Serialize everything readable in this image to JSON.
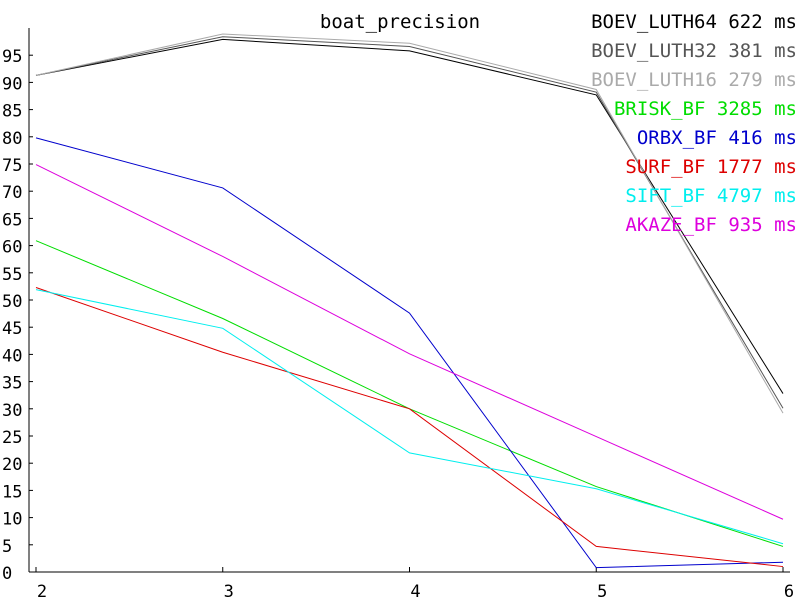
{
  "chart_data": {
    "type": "line",
    "title": "boat_precision",
    "xlabel": "",
    "ylabel": "",
    "x": [
      2,
      3,
      4,
      5,
      6
    ],
    "xlim": [
      2,
      6
    ],
    "ylim": [
      0,
      100
    ],
    "y_ticks": [
      0,
      5,
      10,
      15,
      20,
      25,
      30,
      35,
      40,
      45,
      50,
      55,
      60,
      65,
      70,
      75,
      80,
      85,
      90,
      95
    ],
    "x_ticks": [
      2,
      3,
      4,
      5,
      6
    ],
    "grid": false,
    "legend_position": "top-right",
    "series": [
      {
        "name": "BOEV_LUTH64",
        "time": "622",
        "unit": "ms",
        "color": "#000000",
        "values": [
          91.3,
          97.9,
          95.8,
          87.7,
          32.8
        ]
      },
      {
        "name": "BOEV_LUTH32",
        "time": "381",
        "unit": "ms",
        "color": "#555555",
        "values": [
          91.3,
          98.4,
          96.6,
          88.2,
          30.1
        ]
      },
      {
        "name": "BOEV_LUTH16",
        "time": "279",
        "unit": "ms",
        "color": "#aaaaaa",
        "values": [
          91.3,
          98.9,
          97.2,
          88.7,
          29.2
        ]
      },
      {
        "name": "BRISK_BF",
        "time": "3285",
        "unit": "ms",
        "color": "#00dd00",
        "values": [
          60.9,
          46.6,
          30.0,
          15.7,
          4.7
        ]
      },
      {
        "name": "ORBX_BF",
        "time": "416",
        "unit": "ms",
        "color": "#0000cc",
        "values": [
          79.8,
          70.6,
          47.6,
          0.8,
          1.8
        ]
      },
      {
        "name": "SURF_BF",
        "time": "1777",
        "unit": "ms",
        "color": "#dd0000",
        "values": [
          52.3,
          40.4,
          30.0,
          4.7,
          1.0
        ]
      },
      {
        "name": "SIFT_BF",
        "time": "4797",
        "unit": "ms",
        "color": "#00eeee",
        "values": [
          51.9,
          44.8,
          21.9,
          15.3,
          5.2
        ]
      },
      {
        "name": "AKAZE_BF",
        "time": "935",
        "unit": "ms",
        "color": "#dd00dd",
        "values": [
          74.9,
          58.0,
          40.1,
          24.9,
          9.7
        ]
      }
    ]
  }
}
